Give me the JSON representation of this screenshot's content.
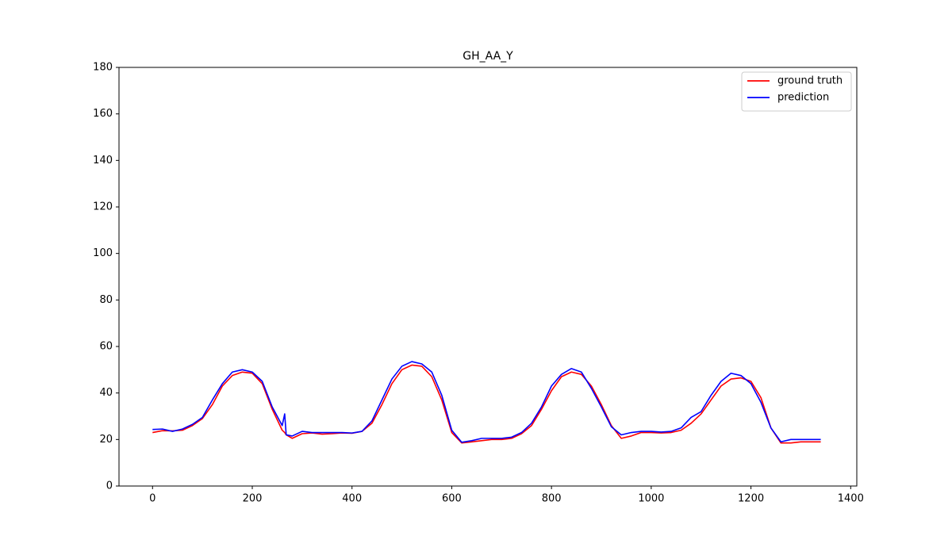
{
  "chart_data": {
    "type": "line",
    "title": "GH_AA_Y",
    "x": [
      0,
      20,
      40,
      60,
      80,
      100,
      120,
      140,
      160,
      180,
      200,
      220,
      240,
      260,
      265,
      268,
      280,
      300,
      320,
      340,
      360,
      380,
      400,
      420,
      440,
      460,
      480,
      500,
      520,
      540,
      560,
      580,
      600,
      620,
      640,
      660,
      680,
      700,
      720,
      740,
      760,
      780,
      800,
      820,
      840,
      860,
      880,
      900,
      920,
      940,
      960,
      980,
      1000,
      1020,
      1040,
      1060,
      1080,
      1100,
      1120,
      1140,
      1160,
      1180,
      1200,
      1220,
      1240,
      1260,
      1280,
      1300,
      1320,
      1340
    ],
    "series": [
      {
        "name": "ground truth",
        "color": "#ff0000",
        "values": [
          23,
          23.8,
          23.7,
          24,
          26,
          29,
          35,
          43,
          47.5,
          49,
          48.5,
          44,
          33,
          24,
          23,
          22,
          20.5,
          22.5,
          22.8,
          22.3,
          22.5,
          22.8,
          22.7,
          23.5,
          27,
          35,
          44,
          50,
          52,
          51.5,
          47,
          37,
          23,
          18.5,
          19,
          19.5,
          20,
          20,
          20.5,
          22.5,
          26,
          33,
          41,
          47,
          49,
          48,
          43,
          35,
          26,
          20.5,
          21.5,
          23,
          23,
          22.8,
          23,
          24,
          27,
          31,
          37,
          43,
          46,
          46.5,
          45,
          38,
          25,
          18.5,
          18.5,
          19,
          19,
          19
        ]
      },
      {
        "name": "prediction",
        "color": "#0000ff",
        "values": [
          24.3,
          24.5,
          23.5,
          24.5,
          26.5,
          29.5,
          37,
          44,
          49,
          50,
          49,
          45,
          34,
          26,
          31,
          22,
          21.5,
          23.5,
          23,
          23,
          23,
          23,
          22.8,
          23.5,
          28,
          37,
          46,
          51.5,
          53.5,
          52.5,
          49,
          39,
          24,
          18.8,
          19.5,
          20.5,
          20.5,
          20.5,
          21,
          23,
          27,
          34,
          43,
          48,
          50.5,
          49,
          42,
          34,
          25.5,
          22,
          23,
          23.5,
          23.5,
          23.2,
          23.5,
          25,
          29.5,
          32,
          39,
          45,
          48.5,
          47.5,
          44,
          36,
          25,
          19,
          20,
          20,
          20,
          20
        ]
      }
    ],
    "xlim": [
      -67.25,
      1412.25
    ],
    "xticks": [
      0,
      200,
      400,
      600,
      800,
      1000,
      1200,
      1400
    ],
    "ylim": [
      0,
      180
    ],
    "yticks": [
      0,
      20,
      40,
      60,
      80,
      100,
      120,
      140,
      160,
      180
    ],
    "grid": false,
    "legend": "upper right"
  }
}
